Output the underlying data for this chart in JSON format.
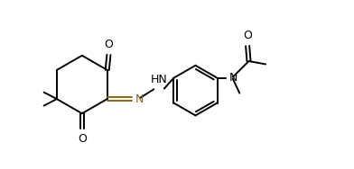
{
  "bg_color": "#ffffff",
  "lc": "#000000",
  "dbc": "#8B6914",
  "figsize": [
    3.92,
    1.88
  ],
  "dpi": 100,
  "xlim": [
    0,
    10.5
  ],
  "ylim": [
    0,
    5.5
  ]
}
